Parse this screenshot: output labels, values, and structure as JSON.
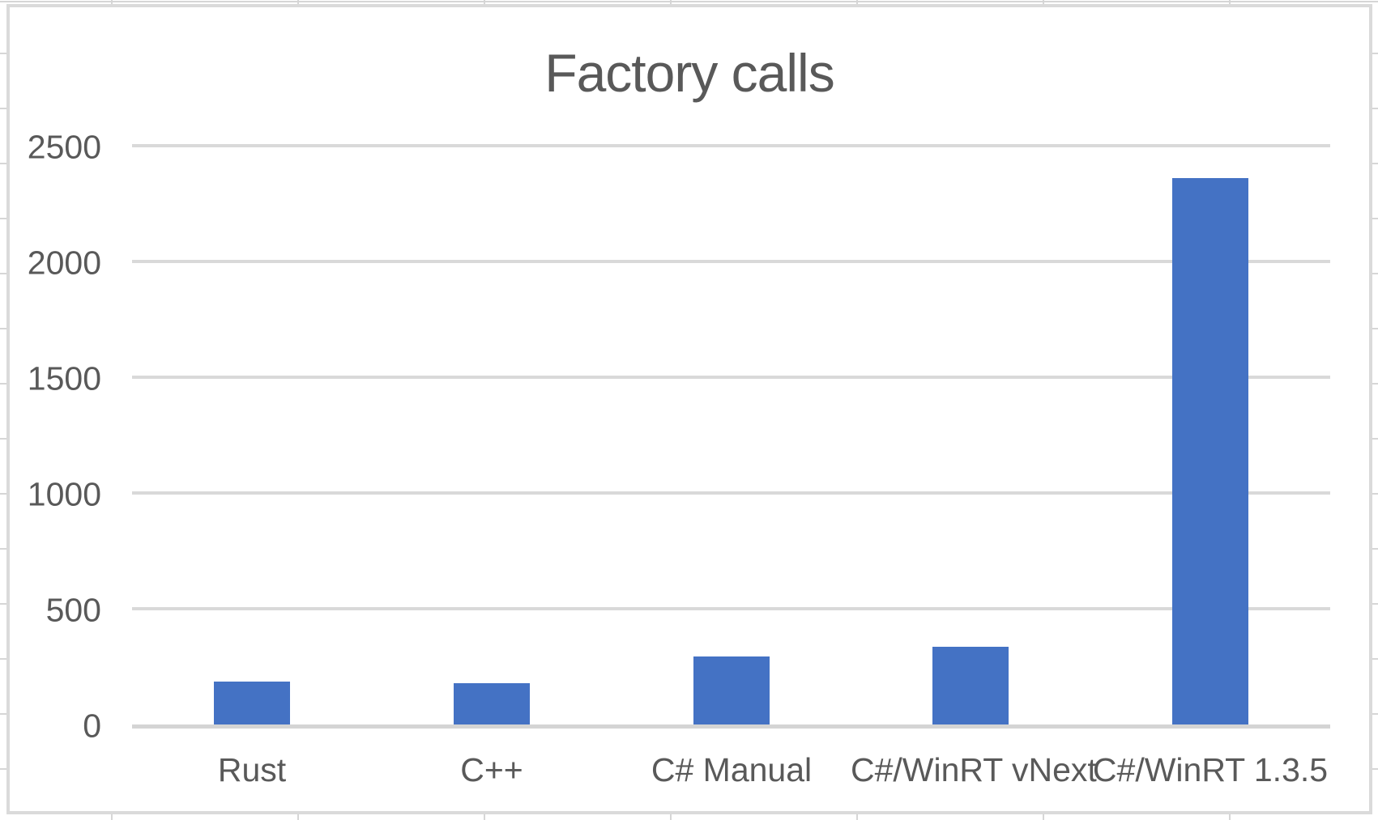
{
  "chart_data": {
    "type": "bar",
    "title": "Factory calls",
    "categories": [
      "Rust",
      "C++",
      "C# Manual",
      "C#/WinRT vNext",
      "C#/WinRT 1.3.5"
    ],
    "values": [
      185,
      180,
      295,
      335,
      2360
    ],
    "xlabel": "",
    "ylabel": "",
    "yticks": [
      0,
      500,
      1000,
      1500,
      2000,
      2500
    ],
    "ylim": [
      0,
      2500
    ],
    "grid": true,
    "legend": false,
    "colors": {
      "bar": "#4472c4",
      "gridline": "#d9d9d9",
      "axis_line": "#d4d4d4",
      "text": "#595959",
      "chart_border": "#dadada",
      "sheet_gridline": "#d6d6d6"
    }
  }
}
